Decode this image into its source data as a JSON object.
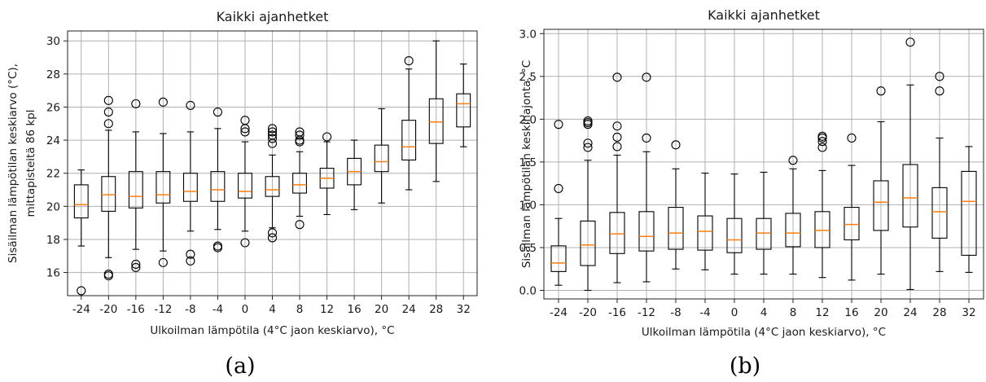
{
  "chart_data": [
    {
      "type": "boxplot",
      "title": "Kaikki ajanhetket",
      "caption": "(a)",
      "xlabel": "Ulkoilman lämpötila (4°C jaon keskiarvo), °C",
      "ylabel": [
        "Sisäilman lämpötilan keskiarvo (°C),",
        "mittapisteitä 86 kpl"
      ],
      "ylim": [
        14.6,
        30.6
      ],
      "yticks": [
        16,
        18,
        20,
        22,
        24,
        26,
        28,
        30
      ],
      "grid": true,
      "categories": [
        "-24",
        "-20",
        "-16",
        "-12",
        "-8",
        "-4",
        "0",
        "4",
        "8",
        "12",
        "16",
        "20",
        "24",
        "28",
        "32"
      ],
      "boxes": [
        {
          "whislo": 17.6,
          "q1": 19.3,
          "med": 20.1,
          "q3": 21.3,
          "whishi": 22.2,
          "fliers": [
            14.9
          ]
        },
        {
          "whislo": 16.9,
          "q1": 19.7,
          "med": 20.7,
          "q3": 21.8,
          "whishi": 24.6,
          "fliers": [
            15.8,
            15.9,
            25.0,
            25.7,
            26.4
          ]
        },
        {
          "whislo": 17.4,
          "q1": 19.9,
          "med": 20.6,
          "q3": 22.1,
          "whishi": 24.5,
          "fliers": [
            16.3,
            16.5,
            26.2
          ]
        },
        {
          "whislo": 17.3,
          "q1": 20.2,
          "med": 20.7,
          "q3": 22.1,
          "whishi": 24.4,
          "fliers": [
            16.6,
            26.3
          ]
        },
        {
          "whislo": 18.5,
          "q1": 20.3,
          "med": 20.9,
          "q3": 22.0,
          "whishi": 24.5,
          "fliers": [
            16.7,
            17.1,
            26.1
          ]
        },
        {
          "whislo": 18.6,
          "q1": 20.3,
          "med": 21.0,
          "q3": 22.1,
          "whishi": 24.7,
          "fliers": [
            17.5,
            17.6,
            25.7
          ]
        },
        {
          "whislo": 18.5,
          "q1": 20.5,
          "med": 20.9,
          "q3": 22.0,
          "whishi": 23.9,
          "fliers": [
            17.8,
            24.5,
            24.7,
            25.2
          ]
        },
        {
          "whislo": 18.7,
          "q1": 20.6,
          "med": 21.0,
          "q3": 21.8,
          "whishi": 23.1,
          "fliers": [
            18.1,
            18.4,
            23.8,
            24.1,
            24.3,
            24.5,
            24.7
          ]
        },
        {
          "whislo": 19.4,
          "q1": 20.8,
          "med": 21.3,
          "q3": 22.0,
          "whishi": 23.3,
          "fliers": [
            18.9,
            23.9,
            24.0,
            24.3,
            24.5
          ]
        },
        {
          "whislo": 19.5,
          "q1": 21.1,
          "med": 21.7,
          "q3": 22.3,
          "whishi": 23.9,
          "fliers": [
            24.2
          ]
        },
        {
          "whislo": 19.8,
          "q1": 21.3,
          "med": 22.1,
          "q3": 22.9,
          "whishi": 24.0,
          "fliers": []
        },
        {
          "whislo": 20.2,
          "q1": 22.1,
          "med": 22.7,
          "q3": 23.7,
          "whishi": 25.9,
          "fliers": []
        },
        {
          "whislo": 21.0,
          "q1": 22.8,
          "med": 23.6,
          "q3": 25.2,
          "whishi": 28.3,
          "fliers": [
            28.8
          ]
        },
        {
          "whislo": 21.5,
          "q1": 23.8,
          "med": 25.1,
          "q3": 26.5,
          "whishi": 30.0,
          "fliers": []
        },
        {
          "whislo": 23.6,
          "q1": 24.8,
          "med": 26.2,
          "q3": 26.8,
          "whishi": 28.6,
          "fliers": []
        }
      ]
    },
    {
      "type": "boxplot",
      "title": "Kaikki ajanhetket",
      "caption": "(b)",
      "xlabel": "Ulkoilman lämpötila (4°C jaon keskiarvo), °C",
      "ylabel": [
        "Sisäilman lämpötilan keskihajonta, °C"
      ],
      "ylim": [
        -0.1,
        3.05
      ],
      "yticks": [
        "0.0",
        "0.5",
        "1.0",
        "1.5",
        "2.0",
        "2.5",
        "3.0"
      ],
      "grid": true,
      "categories": [
        "-24",
        "-20",
        "-16",
        "-12",
        "-8",
        "-4",
        "0",
        "4",
        "8",
        "12",
        "16",
        "20",
        "24",
        "28",
        "32"
      ],
      "boxes": [
        {
          "whislo": 0.06,
          "q1": 0.22,
          "med": 0.32,
          "q3": 0.52,
          "whishi": 0.84,
          "fliers": [
            1.19,
            1.94
          ]
        },
        {
          "whislo": 0.0,
          "q1": 0.29,
          "med": 0.53,
          "q3": 0.81,
          "whishi": 1.52,
          "fliers": [
            1.67,
            1.72,
            1.94,
            1.96,
            1.98
          ]
        },
        {
          "whislo": 0.09,
          "q1": 0.43,
          "med": 0.66,
          "q3": 0.91,
          "whishi": 1.58,
          "fliers": [
            1.68,
            1.79,
            1.92,
            2.49
          ]
        },
        {
          "whislo": 0.1,
          "q1": 0.46,
          "med": 0.63,
          "q3": 0.92,
          "whishi": 1.62,
          "fliers": [
            1.78,
            2.49
          ]
        },
        {
          "whislo": 0.25,
          "q1": 0.48,
          "med": 0.67,
          "q3": 0.97,
          "whishi": 1.42,
          "fliers": [
            1.7
          ]
        },
        {
          "whislo": 0.24,
          "q1": 0.47,
          "med": 0.69,
          "q3": 0.87,
          "whishi": 1.37,
          "fliers": []
        },
        {
          "whislo": 0.19,
          "q1": 0.44,
          "med": 0.59,
          "q3": 0.84,
          "whishi": 1.36,
          "fliers": []
        },
        {
          "whislo": 0.19,
          "q1": 0.48,
          "med": 0.67,
          "q3": 0.84,
          "whishi": 1.38,
          "fliers": []
        },
        {
          "whislo": 0.19,
          "q1": 0.51,
          "med": 0.67,
          "q3": 0.9,
          "whishi": 1.42,
          "fliers": [
            1.52
          ]
        },
        {
          "whislo": 0.15,
          "q1": 0.5,
          "med": 0.7,
          "q3": 0.92,
          "whishi": 1.4,
          "fliers": [
            1.67,
            1.74,
            1.78,
            1.8
          ]
        },
        {
          "whislo": 0.12,
          "q1": 0.59,
          "med": 0.77,
          "q3": 0.97,
          "whishi": 1.46,
          "fliers": [
            1.78
          ]
        },
        {
          "whislo": 0.19,
          "q1": 0.7,
          "med": 1.03,
          "q3": 1.28,
          "whishi": 1.97,
          "fliers": [
            2.33
          ]
        },
        {
          "whislo": 0.01,
          "q1": 0.74,
          "med": 1.08,
          "q3": 1.47,
          "whishi": 2.4,
          "fliers": [
            2.9
          ]
        },
        {
          "whislo": 0.22,
          "q1": 0.61,
          "med": 0.92,
          "q3": 1.2,
          "whishi": 1.78,
          "fliers": [
            2.33,
            2.5
          ]
        },
        {
          "whislo": 0.21,
          "q1": 0.41,
          "med": 1.04,
          "q3": 1.39,
          "whishi": 1.68,
          "fliers": []
        }
      ]
    }
  ]
}
